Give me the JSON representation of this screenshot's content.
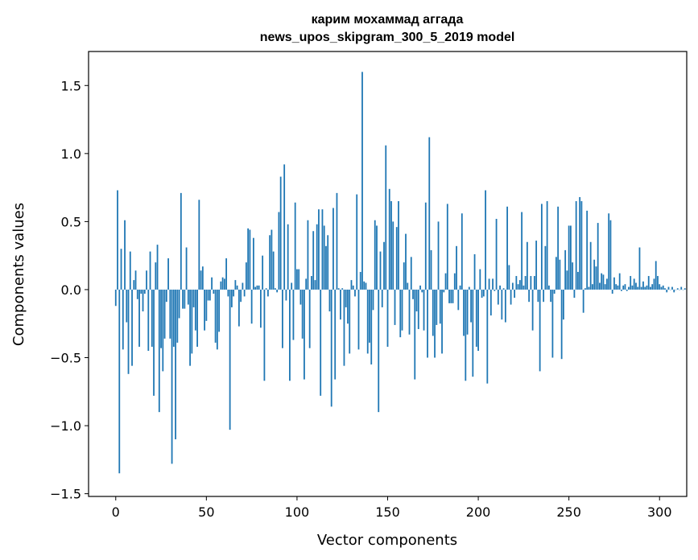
{
  "chart_data": {
    "type": "bar",
    "title_lines": [
      "карим мохаммад аггада",
      "news_upos_skipgram_300_5_2019 model"
    ],
    "xlabel": "Vector components",
    "ylabel": "Components values",
    "xlim": [
      -15,
      315
    ],
    "ylim": [
      -1.52,
      1.75
    ],
    "xticks": [
      0,
      50,
      100,
      150,
      200,
      250,
      300
    ],
    "xtick_labels": [
      "0",
      "50",
      "100",
      "150",
      "200",
      "250",
      "300"
    ],
    "yticks": [
      -1.5,
      -1.0,
      -0.5,
      0.0,
      0.5,
      1.0,
      1.5
    ],
    "ytick_labels": [
      "−1.5",
      "−1.0",
      "−0.5",
      "0.0",
      "0.5",
      "1.0",
      "1.5"
    ],
    "grid": false,
    "bar_color": "#1f77b4",
    "series": [
      {
        "values": [
          -0.12,
          0.73,
          -1.35,
          0.3,
          -0.44,
          0.51,
          -0.24,
          -0.62,
          0.28,
          -0.56,
          0.07,
          0.14,
          -0.07,
          -0.42,
          -0.03,
          -0.16,
          -0.03,
          0.14,
          -0.45,
          0.28,
          -0.42,
          -0.78,
          0.2,
          0.33,
          -0.9,
          -0.43,
          -0.6,
          -0.36,
          -0.09,
          0.23,
          -0.36,
          -1.28,
          -0.42,
          -1.1,
          -0.39,
          -0.21,
          0.71,
          -0.14,
          -0.14,
          0.31,
          -0.11,
          -0.56,
          -0.47,
          -0.13,
          -0.3,
          -0.42,
          0.66,
          0.14,
          0.17,
          -0.3,
          -0.23,
          -0.08,
          -0.08,
          0.09,
          -0.03,
          -0.39,
          -0.44,
          -0.31,
          0.06,
          0.09,
          0.08,
          0.23,
          -0.05,
          -1.03,
          -0.13,
          -0.05,
          0.07,
          0.03,
          -0.27,
          -0.09,
          0.05,
          -0.05,
          0.2,
          0.45,
          0.44,
          -0.25,
          0.38,
          0.02,
          0.03,
          0.03,
          -0.28,
          0.25,
          -0.67,
          0.01,
          -0.05,
          0.4,
          0.44,
          0.28,
          0.01,
          -0.02,
          0.57,
          0.83,
          -0.43,
          0.92,
          -0.08,
          0.48,
          -0.67,
          0.05,
          -0.37,
          0.64,
          0.15,
          0.15,
          -0.11,
          -0.36,
          -0.66,
          0.08,
          0.51,
          -0.43,
          0.1,
          0.43,
          0.07,
          0.48,
          0.59,
          -0.78,
          0.59,
          0.47,
          0.32,
          0.4,
          -0.16,
          -0.86,
          0.6,
          -0.66,
          0.71,
          0.01,
          -0.22,
          0.01,
          -0.56,
          -0.13,
          -0.25,
          -0.47,
          0.07,
          0.03,
          -0.05,
          0.7,
          -0.44,
          0.13,
          1.6,
          0.06,
          0.05,
          -0.47,
          -0.39,
          -0.55,
          -0.15,
          0.51,
          0.47,
          -0.9,
          0.28,
          -0.13,
          0.35,
          1.06,
          -0.42,
          0.74,
          0.65,
          0.5,
          -0.26,
          0.46,
          0.65,
          -0.35,
          -0.3,
          0.2,
          0.41,
          0.05,
          -0.33,
          0.24,
          -0.07,
          -0.66,
          -0.16,
          -0.29,
          0.03,
          -0.02,
          -0.3,
          0.64,
          -0.5,
          1.12,
          0.29,
          -0.34,
          -0.5,
          -0.26,
          0.5,
          -0.25,
          -0.47,
          -0.02,
          0.12,
          0.63,
          -0.1,
          -0.1,
          -0.1,
          0.12,
          0.32,
          -0.15,
          0.03,
          0.56,
          -0.34,
          -0.67,
          -0.33,
          0.02,
          -0.24,
          -0.64,
          0.26,
          -0.42,
          -0.45,
          0.15,
          -0.06,
          -0.05,
          0.73,
          -0.69,
          0.08,
          -0.19,
          0.08,
          -0.01,
          0.52,
          -0.11,
          0.03,
          -0.22,
          0.01,
          -0.24,
          0.61,
          0.18,
          -0.11,
          0.05,
          -0.06,
          0.1,
          0.04,
          0.07,
          0.57,
          0.03,
          0.1,
          0.35,
          -0.09,
          0.1,
          -0.3,
          0.1,
          0.36,
          -0.09,
          -0.6,
          0.63,
          -0.09,
          0.32,
          0.65,
          0.03,
          -0.09,
          -0.5,
          -0.03,
          0.24,
          0.61,
          0.22,
          -0.51,
          -0.22,
          0.29,
          0.14,
          0.47,
          0.47,
          0.2,
          -0.06,
          0.65,
          0.13,
          0.68,
          0.65,
          -0.17,
          0.01,
          0.58,
          0.02,
          0.35,
          0.04,
          0.22,
          0.17,
          0.49,
          0.05,
          0.12,
          0.11,
          0.04,
          0.08,
          0.56,
          0.51,
          -0.03,
          0.09,
          0.04,
          0.03,
          0.12,
          -0.01,
          0.03,
          0.04,
          -0.01,
          0.02,
          0.1,
          0.03,
          0.08,
          0.05,
          0.02,
          0.31,
          0.02,
          0.06,
          0.02,
          0.03,
          0.1,
          0.02,
          0.04,
          0.08,
          0.21,
          0.1,
          0.04,
          0.02,
          0.03,
          0.01,
          -0.02,
          0.02,
          0.0,
          0.02,
          -0.02,
          0.0,
          0.01,
          0.0,
          0.02,
          0.0,
          0.01
        ]
      }
    ]
  }
}
